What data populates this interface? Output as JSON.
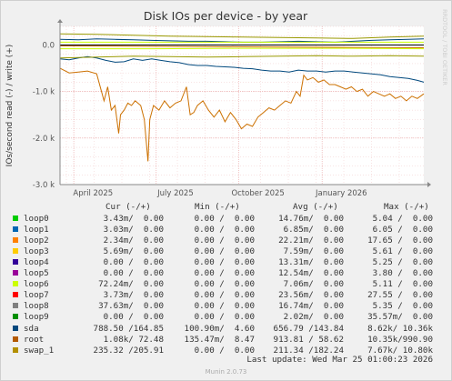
{
  "chart_data": {
    "type": "line",
    "title": "Disk IOs per device - by year",
    "ylabel": "IOs/second read (-) / write (+)",
    "watermark": "RRDTOOL / TOBI OETIKER",
    "y_ticks": [
      "0.0",
      "-1.0 k",
      "-2.0 k",
      "-3.0 k"
    ],
    "y_tick_values": [
      0,
      -1000,
      -2000,
      -3000
    ],
    "ylim": [
      -3000,
      400
    ],
    "x_ticks": [
      "April 2025",
      "July 2025",
      "October 2025",
      "January 2026"
    ],
    "grid": true,
    "series": [
      {
        "name": "sda",
        "color": "#00487d",
        "read": [
          [
            0,
            -300
          ],
          [
            10,
            -320
          ],
          [
            20,
            -280
          ],
          [
            30,
            -250
          ],
          [
            40,
            -280
          ],
          [
            50,
            -330
          ],
          [
            60,
            -370
          ],
          [
            70,
            -360
          ],
          [
            80,
            -300
          ],
          [
            90,
            -330
          ],
          [
            100,
            -300
          ],
          [
            110,
            -330
          ],
          [
            120,
            -360
          ],
          [
            130,
            -380
          ],
          [
            140,
            -420
          ],
          [
            150,
            -440
          ],
          [
            160,
            -440
          ],
          [
            170,
            -460
          ],
          [
            180,
            -470
          ],
          [
            190,
            -480
          ],
          [
            200,
            -500
          ],
          [
            210,
            -510
          ],
          [
            220,
            -540
          ],
          [
            230,
            -560
          ],
          [
            240,
            -560
          ],
          [
            250,
            -580
          ],
          [
            260,
            -540
          ],
          [
            270,
            -560
          ],
          [
            280,
            -560
          ],
          [
            290,
            -580
          ],
          [
            300,
            -560
          ],
          [
            310,
            -560
          ],
          [
            320,
            -580
          ],
          [
            330,
            -600
          ],
          [
            340,
            -620
          ],
          [
            350,
            -640
          ],
          [
            360,
            -680
          ],
          [
            370,
            -700
          ],
          [
            380,
            -720
          ],
          [
            390,
            -760
          ],
          [
            397,
            -800
          ]
        ],
        "write": [
          [
            0,
            120
          ],
          [
            20,
            110
          ],
          [
            40,
            130
          ],
          [
            60,
            120
          ],
          [
            80,
            110
          ],
          [
            100,
            100
          ],
          [
            120,
            90
          ],
          [
            140,
            80
          ],
          [
            160,
            80
          ],
          [
            180,
            70
          ],
          [
            200,
            60
          ],
          [
            220,
            60
          ],
          [
            240,
            70
          ],
          [
            260,
            80
          ],
          [
            280,
            70
          ],
          [
            300,
            60
          ],
          [
            320,
            80
          ],
          [
            340,
            100
          ],
          [
            360,
            110
          ],
          [
            380,
            120
          ],
          [
            397,
            130
          ]
        ]
      },
      {
        "name": "root",
        "color": "#cc7000",
        "read": [
          [
            0,
            -500
          ],
          [
            10,
            -600
          ],
          [
            20,
            -580
          ],
          [
            30,
            -560
          ],
          [
            40,
            -620
          ],
          [
            48,
            -1200
          ],
          [
            52,
            -900
          ],
          [
            56,
            -1400
          ],
          [
            60,
            -1300
          ],
          [
            64,
            -1900
          ],
          [
            66,
            -1500
          ],
          [
            70,
            -1400
          ],
          [
            74,
            -1250
          ],
          [
            78,
            -1300
          ],
          [
            82,
            -1200
          ],
          [
            88,
            -1300
          ],
          [
            92,
            -1600
          ],
          [
            96,
            -2500
          ],
          [
            98,
            -1600
          ],
          [
            102,
            -1300
          ],
          [
            108,
            -1400
          ],
          [
            114,
            -1200
          ],
          [
            120,
            -1350
          ],
          [
            126,
            -1250
          ],
          [
            132,
            -1200
          ],
          [
            138,
            -900
          ],
          [
            142,
            -1500
          ],
          [
            146,
            -1450
          ],
          [
            150,
            -1300
          ],
          [
            156,
            -1200
          ],
          [
            162,
            -1400
          ],
          [
            168,
            -1550
          ],
          [
            174,
            -1400
          ],
          [
            180,
            -1650
          ],
          [
            186,
            -1450
          ],
          [
            192,
            -1600
          ],
          [
            198,
            -1800
          ],
          [
            204,
            -1700
          ],
          [
            210,
            -1750
          ],
          [
            216,
            -1550
          ],
          [
            222,
            -1450
          ],
          [
            228,
            -1350
          ],
          [
            234,
            -1400
          ],
          [
            240,
            -1300
          ],
          [
            246,
            -1200
          ],
          [
            252,
            -1250
          ],
          [
            258,
            -1000
          ],
          [
            262,
            -1100
          ],
          [
            266,
            -650
          ],
          [
            270,
            -750
          ],
          [
            276,
            -700
          ],
          [
            282,
            -800
          ],
          [
            288,
            -750
          ],
          [
            294,
            -850
          ],
          [
            300,
            -850
          ],
          [
            306,
            -900
          ],
          [
            312,
            -950
          ],
          [
            318,
            -900
          ],
          [
            324,
            -1000
          ],
          [
            330,
            -950
          ],
          [
            336,
            -1100
          ],
          [
            342,
            -1000
          ],
          [
            348,
            -1050
          ],
          [
            354,
            -1100
          ],
          [
            360,
            -1050
          ],
          [
            366,
            -1150
          ],
          [
            372,
            -1100
          ],
          [
            378,
            -1200
          ],
          [
            384,
            -1100
          ],
          [
            390,
            -1150
          ],
          [
            397,
            -1050
          ]
        ],
        "write": [
          [
            0,
            -20
          ],
          [
            100,
            -30
          ],
          [
            200,
            -40
          ],
          [
            300,
            -50
          ],
          [
            397,
            -60
          ]
        ]
      },
      {
        "name": "swap_1",
        "color": "#999900",
        "read": [
          [
            0,
            -280
          ],
          [
            40,
            -260
          ],
          [
            80,
            -240
          ],
          [
            120,
            -250
          ],
          [
            160,
            -260
          ],
          [
            200,
            -250
          ],
          [
            240,
            -240
          ],
          [
            280,
            -230
          ],
          [
            320,
            -240
          ],
          [
            360,
            -230
          ],
          [
            397,
            -240
          ]
        ],
        "write": [
          [
            0,
            240
          ],
          [
            40,
            230
          ],
          [
            80,
            210
          ],
          [
            120,
            190
          ],
          [
            160,
            180
          ],
          [
            200,
            170
          ],
          [
            240,
            160
          ],
          [
            280,
            150
          ],
          [
            320,
            140
          ],
          [
            360,
            170
          ],
          [
            397,
            190
          ]
        ]
      },
      {
        "name": "loop6",
        "color": "#ccff00",
        "read": [
          [
            0,
            -80
          ],
          [
            100,
            -80
          ],
          [
            200,
            -70
          ],
          [
            300,
            -70
          ],
          [
            397,
            -80
          ]
        ],
        "write": [
          [
            0,
            60
          ],
          [
            397,
            60
          ]
        ]
      }
    ],
    "legend": {
      "header": {
        "cur": "Cur (-/+)",
        "min": "Min (-/+)",
        "avg": "Avg (-/+)",
        "max": "Max (-/+)"
      },
      "rows": [
        {
          "name": "loop0",
          "color": "#00cc00",
          "cur": "3.43m/  0.00",
          "min": "0.00 /  0.00",
          "avg": "14.76m/  0.00",
          "max": "5.04 /  0.00"
        },
        {
          "name": "loop1",
          "color": "#0066b3",
          "cur": "3.03m/  0.00",
          "min": "0.00 /  0.00",
          "avg": "6.85m/  0.00",
          "max": "6.05 /  0.00"
        },
        {
          "name": "loop2",
          "color": "#ff8000",
          "cur": "2.34m/  0.00",
          "min": "0.00 /  0.00",
          "avg": "22.21m/  0.00",
          "max": "17.65 /  0.00"
        },
        {
          "name": "loop3",
          "color": "#ffcc00",
          "cur": "5.69m/  0.00",
          "min": "0.00 /  0.00",
          "avg": "7.59m/  0.00",
          "max": "5.61 /  0.00"
        },
        {
          "name": "loop4",
          "color": "#330099",
          "cur": "0.00 /  0.00",
          "min": "0.00 /  0.00",
          "avg": "13.31m/  0.00",
          "max": "5.25 /  0.00"
        },
        {
          "name": "loop5",
          "color": "#990099",
          "cur": "0.00 /  0.00",
          "min": "0.00 /  0.00",
          "avg": "12.54m/  0.00",
          "max": "3.80 /  0.00"
        },
        {
          "name": "loop6",
          "color": "#ccff00",
          "cur": "72.24m/  0.00",
          "min": "0.00 /  0.00",
          "avg": "7.06m/  0.00",
          "max": "5.11 /  0.00"
        },
        {
          "name": "loop7",
          "color": "#ff0000",
          "cur": "3.73m/  0.00",
          "min": "0.00 /  0.00",
          "avg": "23.56m/  0.00",
          "max": "27.55 /  0.00"
        },
        {
          "name": "loop8",
          "color": "#808080",
          "cur": "37.63m/  0.00",
          "min": "0.00 /  0.00",
          "avg": "16.74m/  0.00",
          "max": "5.35 /  0.00"
        },
        {
          "name": "loop9",
          "color": "#008f00",
          "cur": "0.00 /  0.00",
          "min": "0.00 /  0.00",
          "avg": "2.02m/  0.00",
          "max": "35.57m/  0.00"
        },
        {
          "name": "sda",
          "color": "#00487d",
          "cur": "788.50 /164.85",
          "min": "100.90m/  4.60",
          "avg": "656.79 /143.84",
          "max": "8.62k/ 10.36k"
        },
        {
          "name": "root",
          "color": "#b35a00",
          "cur": "1.08k/ 72.48",
          "min": "135.47m/  8.47",
          "avg": "913.81 / 58.62",
          "max": "10.35k/990.90"
        },
        {
          "name": "swap_1",
          "color": "#b38f00",
          "cur": "235.32 /205.91",
          "min": "0.00 /  0.00",
          "avg": "211.34 /182.24",
          "max": "7.67k/ 10.80k"
        }
      ]
    },
    "last_update": "Last update: Wed Mar 25 01:00:23 2026",
    "munin_version": "Munin 2.0.73"
  }
}
